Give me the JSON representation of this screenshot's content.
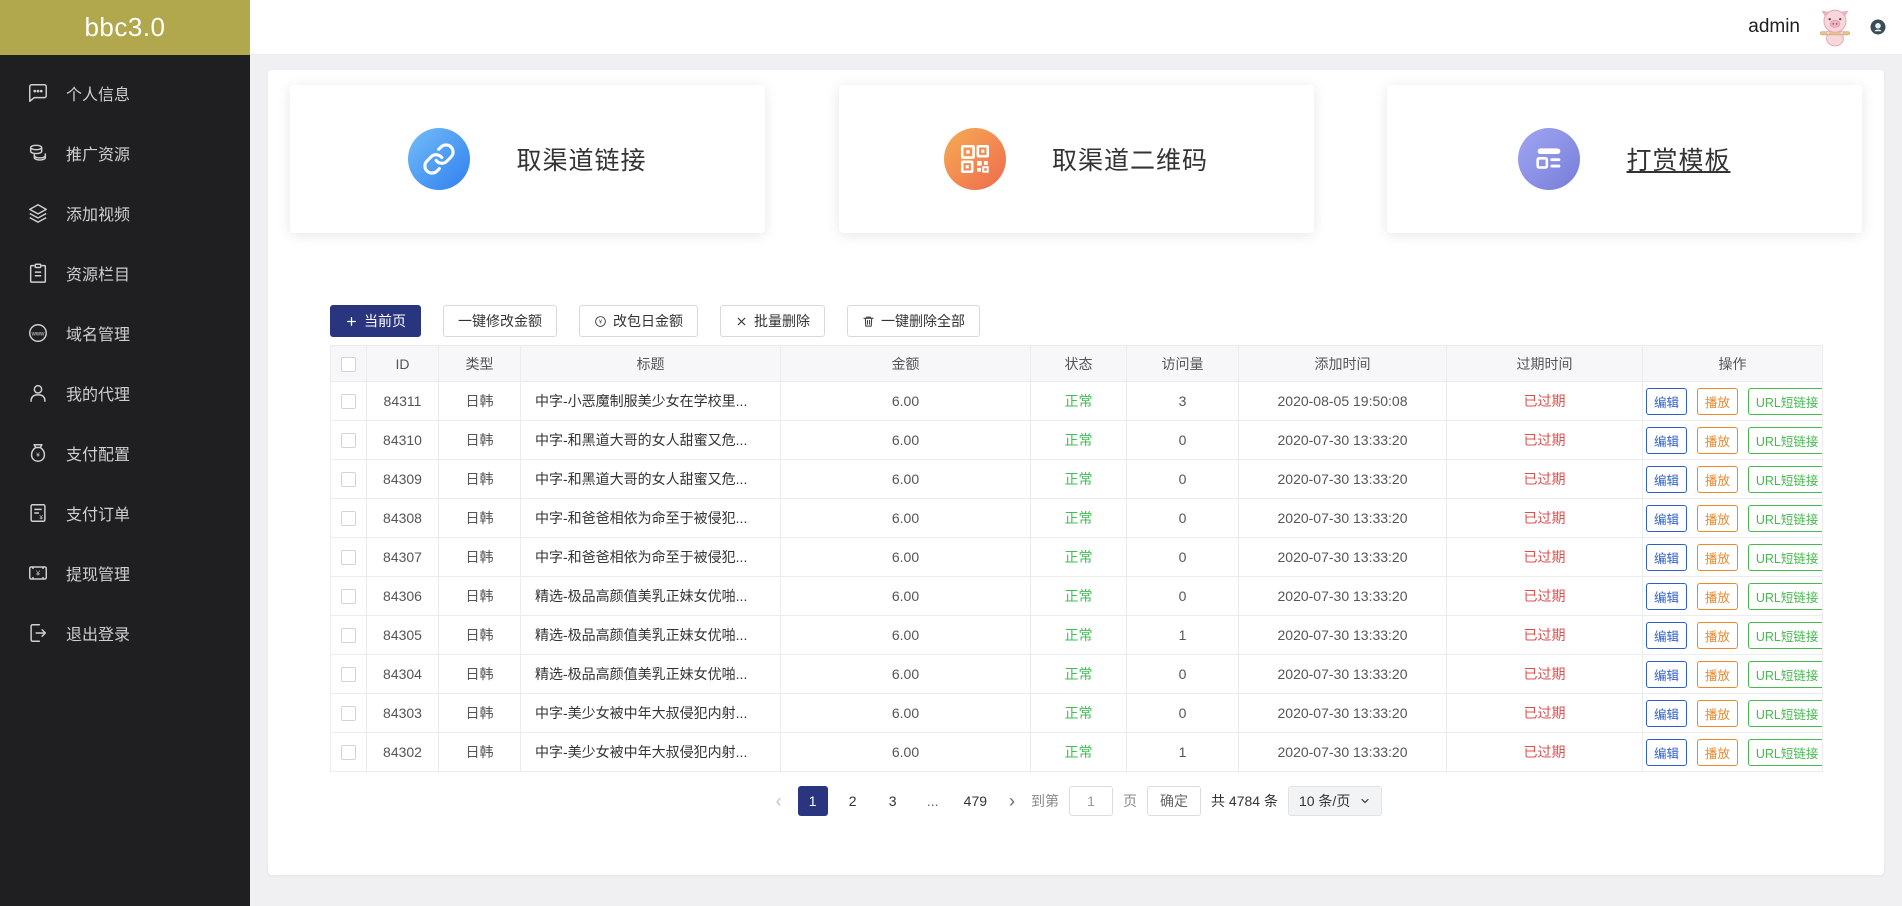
{
  "app": {
    "logo_text": "bbc3.0"
  },
  "header": {
    "username": "admin"
  },
  "sidebar": {
    "items": [
      {
        "label": "个人信息",
        "icon": "chat-icon"
      },
      {
        "label": "推广资源",
        "icon": "coins-icon"
      },
      {
        "label": "添加视频",
        "icon": "layers-icon"
      },
      {
        "label": "资源栏目",
        "icon": "clipboard-icon"
      },
      {
        "label": "域名管理",
        "icon": "globe-www-icon"
      },
      {
        "label": "我的代理",
        "icon": "user-icon"
      },
      {
        "label": "支付配置",
        "icon": "money-bag-icon"
      },
      {
        "label": "支付订单",
        "icon": "receipt-icon"
      },
      {
        "label": "提现管理",
        "icon": "banknote-icon"
      },
      {
        "label": "退出登录",
        "icon": "logout-icon"
      }
    ]
  },
  "cards": [
    {
      "label": "取渠道链接",
      "icon": "link-icon",
      "color_from": "#74bdf7",
      "color_to": "#2e7ff0",
      "underline": false
    },
    {
      "label": "取渠道二维码",
      "icon": "qrcode-icon",
      "color_from": "#f6ac53",
      "color_to": "#ee6a4f",
      "underline": false
    },
    {
      "label": "打赏模板",
      "icon": "template-list-icon",
      "color_from": "#a0a6f2",
      "color_to": "#777dd9",
      "underline": true
    }
  ],
  "toolbar": {
    "buttons": [
      {
        "label": "当前页",
        "icon": "plus-icon",
        "variant": "primary"
      },
      {
        "label": "一键修改金额",
        "icon": null,
        "variant": "default"
      },
      {
        "label": "改包日金额",
        "icon": "yen-circle-icon",
        "variant": "default"
      },
      {
        "label": "批量删除",
        "icon": "x-icon",
        "variant": "default"
      },
      {
        "label": "一键删除全部",
        "icon": "trash-icon",
        "variant": "default"
      }
    ]
  },
  "table": {
    "headers": [
      "ID",
      "类型",
      "标题",
      "金额",
      "状态",
      "访问量",
      "添加时间",
      "过期时间",
      "操作"
    ],
    "actions": [
      "编辑",
      "播放",
      "URL短链接"
    ],
    "rows": [
      {
        "id": "84311",
        "type": "日韩",
        "title": "中字-小恶魔制服美少女在学校里...",
        "amount": "6.00",
        "status": "正常",
        "visits": "3",
        "added": "2020-08-05 19:50:08",
        "expired": "已过期"
      },
      {
        "id": "84310",
        "type": "日韩",
        "title": "中字-和黑道大哥的女人甜蜜又危...",
        "amount": "6.00",
        "status": "正常",
        "visits": "0",
        "added": "2020-07-30 13:33:20",
        "expired": "已过期"
      },
      {
        "id": "84309",
        "type": "日韩",
        "title": "中字-和黑道大哥的女人甜蜜又危...",
        "amount": "6.00",
        "status": "正常",
        "visits": "0",
        "added": "2020-07-30 13:33:20",
        "expired": "已过期"
      },
      {
        "id": "84308",
        "type": "日韩",
        "title": "中字-和爸爸相依为命至于被侵犯...",
        "amount": "6.00",
        "status": "正常",
        "visits": "0",
        "added": "2020-07-30 13:33:20",
        "expired": "已过期"
      },
      {
        "id": "84307",
        "type": "日韩",
        "title": "中字-和爸爸相依为命至于被侵犯...",
        "amount": "6.00",
        "status": "正常",
        "visits": "0",
        "added": "2020-07-30 13:33:20",
        "expired": "已过期"
      },
      {
        "id": "84306",
        "type": "日韩",
        "title": "精选-极品高颜值美乳正妹女优啪...",
        "amount": "6.00",
        "status": "正常",
        "visits": "0",
        "added": "2020-07-30 13:33:20",
        "expired": "已过期"
      },
      {
        "id": "84305",
        "type": "日韩",
        "title": "精选-极品高颜值美乳正妹女优啪...",
        "amount": "6.00",
        "status": "正常",
        "visits": "1",
        "added": "2020-07-30 13:33:20",
        "expired": "已过期"
      },
      {
        "id": "84304",
        "type": "日韩",
        "title": "精选-极品高颜值美乳正妹女优啪...",
        "amount": "6.00",
        "status": "正常",
        "visits": "0",
        "added": "2020-07-30 13:33:20",
        "expired": "已过期"
      },
      {
        "id": "84303",
        "type": "日韩",
        "title": "中字-美少女被中年大叔侵犯内射...",
        "amount": "6.00",
        "status": "正常",
        "visits": "0",
        "added": "2020-07-30 13:33:20",
        "expired": "已过期"
      },
      {
        "id": "84302",
        "type": "日韩",
        "title": "中字-美少女被中年大叔侵犯内射...",
        "amount": "6.00",
        "status": "正常",
        "visits": "1",
        "added": "2020-07-30 13:33:20",
        "expired": "已过期"
      }
    ]
  },
  "pagination": {
    "prev": "‹",
    "pages": [
      "1",
      "2",
      "3",
      "...",
      "479"
    ],
    "active_page": "1",
    "next": "›",
    "goto_label": "到第",
    "goto_value": "1",
    "page_label": "页",
    "confirm_label": "确定",
    "total_label": "共 4784 条",
    "page_size_label": "10 条/页"
  },
  "colors": {
    "accent_navy": "#2a3580",
    "logo_olive": "#b1a74d",
    "status_green": "#3fbf53",
    "expired_red": "#e04f4f",
    "edit_blue": "#2e5fc9",
    "play_orange": "#e8892e",
    "url_green": "#47b94f"
  }
}
